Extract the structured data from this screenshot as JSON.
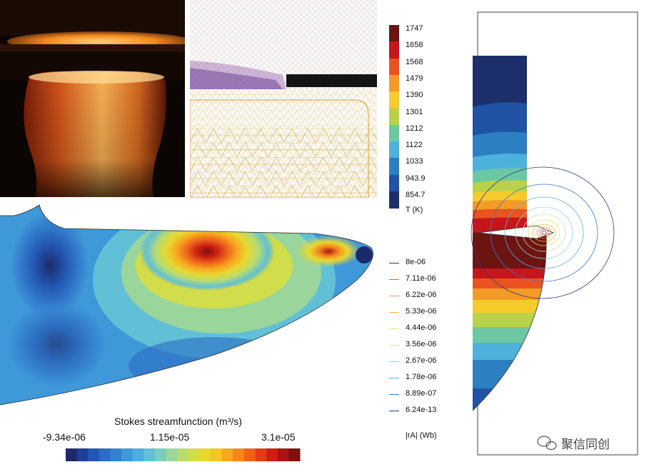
{
  "temperature_colorbar": {
    "unit_label": "T (K)",
    "levels": [
      {
        "label": "1747",
        "color": "#6b1412"
      },
      {
        "label": "1658",
        "color": "#c8151b"
      },
      {
        "label": "1568",
        "color": "#ea5321"
      },
      {
        "label": "1479",
        "color": "#f49a26"
      },
      {
        "label": "1390",
        "color": "#f6cb2c"
      },
      {
        "label": "1301",
        "color": "#b9d249"
      },
      {
        "label": "1212",
        "color": "#6cc7a3"
      },
      {
        "label": "1122",
        "color": "#4db2db"
      },
      {
        "label": "1033",
        "color": "#2c7fc0"
      },
      {
        "label": "943.9",
        "color": "#2153a4"
      },
      {
        "label": "854.7",
        "color": "#1c2f6a"
      }
    ]
  },
  "magnetic_contours": {
    "unit_label": "|rA| (Wb)",
    "levels": [
      {
        "label": "8e-06",
        "color": "#7b1e1e"
      },
      {
        "label": "7.11e-06",
        "color": "#e0603a"
      },
      {
        "label": "6.22e-06",
        "color": "#f08a5a"
      },
      {
        "label": "5.33e-06",
        "color": "#f0b83a"
      },
      {
        "label": "4.44e-06",
        "color": "#e8e070"
      },
      {
        "label": "3.56e-06",
        "color": "#c7e6a0"
      },
      {
        "label": "2.67e-06",
        "color": "#8fd4d8"
      },
      {
        "label": "1.78e-06",
        "color": "#5ab0e0"
      },
      {
        "label": "8.89e-07",
        "color": "#3a78c8"
      },
      {
        "label": "6.24e-13",
        "color": "#2a3a7a"
      }
    ]
  },
  "stream_colorbar": {
    "title": "Stokes streamfunction (m³/s)",
    "min_label": "-9.34e-06",
    "mid_label": "1.15e-05",
    "max_label": "3.1e-05",
    "colors": [
      "#1c2a6b",
      "#1f3f93",
      "#2356b2",
      "#2b6cc4",
      "#3582d0",
      "#3f98d8",
      "#4eaedc",
      "#62c0d6",
      "#7ccdbd",
      "#9ad69b",
      "#b8dc70",
      "#d2dd4b",
      "#e8d830",
      "#f4c523",
      "#f7a71f",
      "#f4861c",
      "#ee621a",
      "#e23c17",
      "#cc2015",
      "#a81512",
      "#7e0f0e"
    ]
  },
  "watermark": {
    "text": "聚信同创"
  },
  "colors": {
    "domain_outline": "#2a2a2a"
  }
}
